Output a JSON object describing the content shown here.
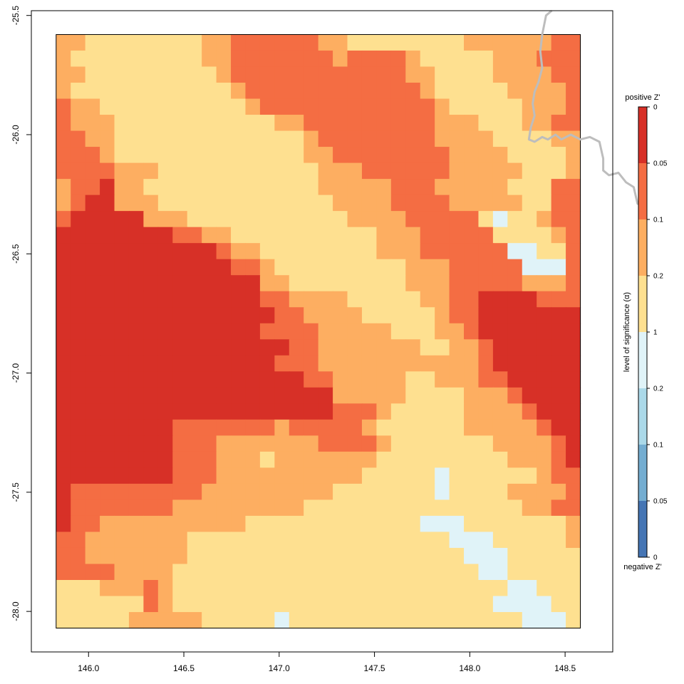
{
  "chart_data": {
    "type": "heatmap",
    "title": "",
    "xlabel": "",
    "ylabel": "",
    "xlim": [
      145.7,
      148.75
    ],
    "ylim": [
      -28.17,
      -25.48
    ],
    "extent": {
      "xmin": 145.83,
      "xmax": 148.58,
      "ymin": -28.07,
      "ymax": -25.58
    },
    "x_ticks": [
      146.0,
      146.5,
      147.0,
      147.5,
      148.0,
      148.5
    ],
    "x_tick_labels": [
      "146.0",
      "146.5",
      "147.0",
      "147.5",
      "148.0",
      "148.5"
    ],
    "y_ticks": [
      -25.5,
      -26.0,
      -26.5,
      -27.0,
      -27.5,
      -28.0
    ],
    "y_tick_labels": [
      "-25.5",
      "-26.0",
      "-26.5",
      "-27.0",
      "-27.5",
      "-28.0"
    ],
    "grid": false,
    "classes": [
      {
        "code": "a",
        "label": "positive Z', alpha 0 to 0.05",
        "color": "#d73027"
      },
      {
        "code": "b",
        "label": "positive Z', alpha 0.05 to 0.1",
        "color": "#f46d43"
      },
      {
        "code": "c",
        "label": "positive Z', alpha 0.1 to 0.2",
        "color": "#fdae61"
      },
      {
        "code": "d",
        "label": "positive Z', alpha 0.2 to 1",
        "color": "#fee090"
      },
      {
        "code": "e",
        "label": "negative Z', alpha 1 to 0.2",
        "color": "#e0f3f8"
      },
      {
        "code": "f",
        "label": "negative Z', alpha 0.2 to 0.1",
        "color": "#abd9e9"
      },
      {
        "code": "g",
        "label": "negative Z', alpha 0.1 to 0.05",
        "color": "#74add1"
      },
      {
        "code": "h",
        "label": "negative Z', alpha 0.05 to 0",
        "color": "#4575b4"
      }
    ],
    "grid_rows_north_to_south": [
      "ccddddddddccbbbbbbccddddddddccccccbb",
      "cdddddddddccbbbbbbbcbbbbcdddddcccbbb",
      "ccdddddddddcbbbbbbbbbbbbccddddccccbb",
      "cdddddddddddcbbbbbbbbbbbbcdddddccccb",
      "bccddddddddddcbbbbbbbbbbbbcdddddcccb",
      "bcccdddddddddddccbbbbbbbbbcccdddccbb",
      "bbccdddddddddddddcbbbbbbbbccccddddcc",
      "bbbcdddddddddddddccbbbbbbbbccccddddc",
      "bbbbcccdddddddddddcccbbbbbbcccccdddc",
      "cbbaccddddddddddddcccccbbbcccccdddbb",
      "cbaacccddddddddddddccccbbbbcccccddbb",
      "baaaaacccdddddddddddccccbbbbbdeddcbb",
      "aaaaaaaabbccddddddddddcccbbbbbddddcb",
      "aaaaaaaaaaabccddddddddcccbbbbbbeeddb",
      "aaaaaaaaaaaabbcdddddddddcccbbbbbeeeb",
      "aaaaaaaaaaaaaaccddddddddcccbbbbbcccb",
      "aaaaaaaaaaaaaabbccccdddddccbbaaaabbb",
      "aaaaaaaaaaaaaaabbccccdddddcbbaaaaaaa",
      "aaaaaaaaaaaaaabbbbcccccdddccbaaaaaaa",
      "aaaaaaaaaaaaaaaabbcccccccddccbaaaaaa",
      "aaaaaaaaaaaaaaabbbcccccccccccbaaaaaa",
      "aaaaaaaaaaaaaaaaabbcccccddcccbbaaaaa",
      "aaaaaaaaaaaaaaaaaaacccccddddcccbaaaa",
      "aaaaaaaaaaaaaaaaaaabbbcdddddccccbaaa",
      "aaaaaaaabbbbbbbcbbbbbcddddddcccccbaa",
      "aaaaaaaabbbcccccccbbbbcdddddddccccba",
      "aaaaaaaabbbcccdcccccccdddddddddcccba",
      "aaaaaaaabbbccccccccccdddddeddddddcbb",
      "abbbbbbbbbcccccccccdddddddeddddccccb",
      "abbbbbbbcccccccccdddddddddddddddccbb",
      "abbccccccccccddddddddddddeeedddddddc",
      "bbcccccccddddddddddddddddddeeedddddc",
      "bbcccccccdddddddddddddddddddeeeddddd",
      "bbbbccccdddddddddddddddddddddeeddddd",
      "dddcccbcdddddddddddddddddddddddeeddd",
      "ddddddbcddddddddddddddddddddddeeeedd",
      "dddddcccccdddddeddddddddddddddddeeed"
    ],
    "state_border_line": [
      [
        148.43,
        -25.48
      ],
      [
        148.4,
        -25.5
      ],
      [
        148.38,
        -25.58
      ],
      [
        148.37,
        -25.65
      ],
      [
        148.38,
        -25.72
      ],
      [
        148.36,
        -25.78
      ],
      [
        148.34,
        -25.82
      ],
      [
        148.33,
        -25.87
      ],
      [
        148.34,
        -25.92
      ],
      [
        148.32,
        -25.97
      ],
      [
        148.31,
        -26.02
      ],
      [
        148.34,
        -26.03
      ],
      [
        148.38,
        -26.01
      ],
      [
        148.41,
        -26.02
      ],
      [
        148.45,
        -26.0
      ],
      [
        148.48,
        -26.02
      ],
      [
        148.53,
        -26.0
      ],
      [
        148.58,
        -26.02
      ],
      [
        148.63,
        -26.01
      ],
      [
        148.68,
        -26.03
      ],
      [
        148.7,
        -26.1
      ],
      [
        148.7,
        -26.15
      ],
      [
        148.73,
        -26.17
      ],
      [
        148.78,
        -26.16
      ],
      [
        148.82,
        -26.2
      ],
      [
        148.86,
        -26.22
      ],
      [
        148.88,
        -26.29
      ],
      [
        148.93,
        -26.29
      ]
    ]
  },
  "legend": {
    "top_label": "positive Z'",
    "bottom_label": "negative Z'",
    "axis_title": "level of significance (α)",
    "tick_labels": [
      "0",
      "0.05",
      "0.1",
      "0.2",
      "1",
      "0.2",
      "0.1",
      "0.05",
      "0"
    ]
  }
}
